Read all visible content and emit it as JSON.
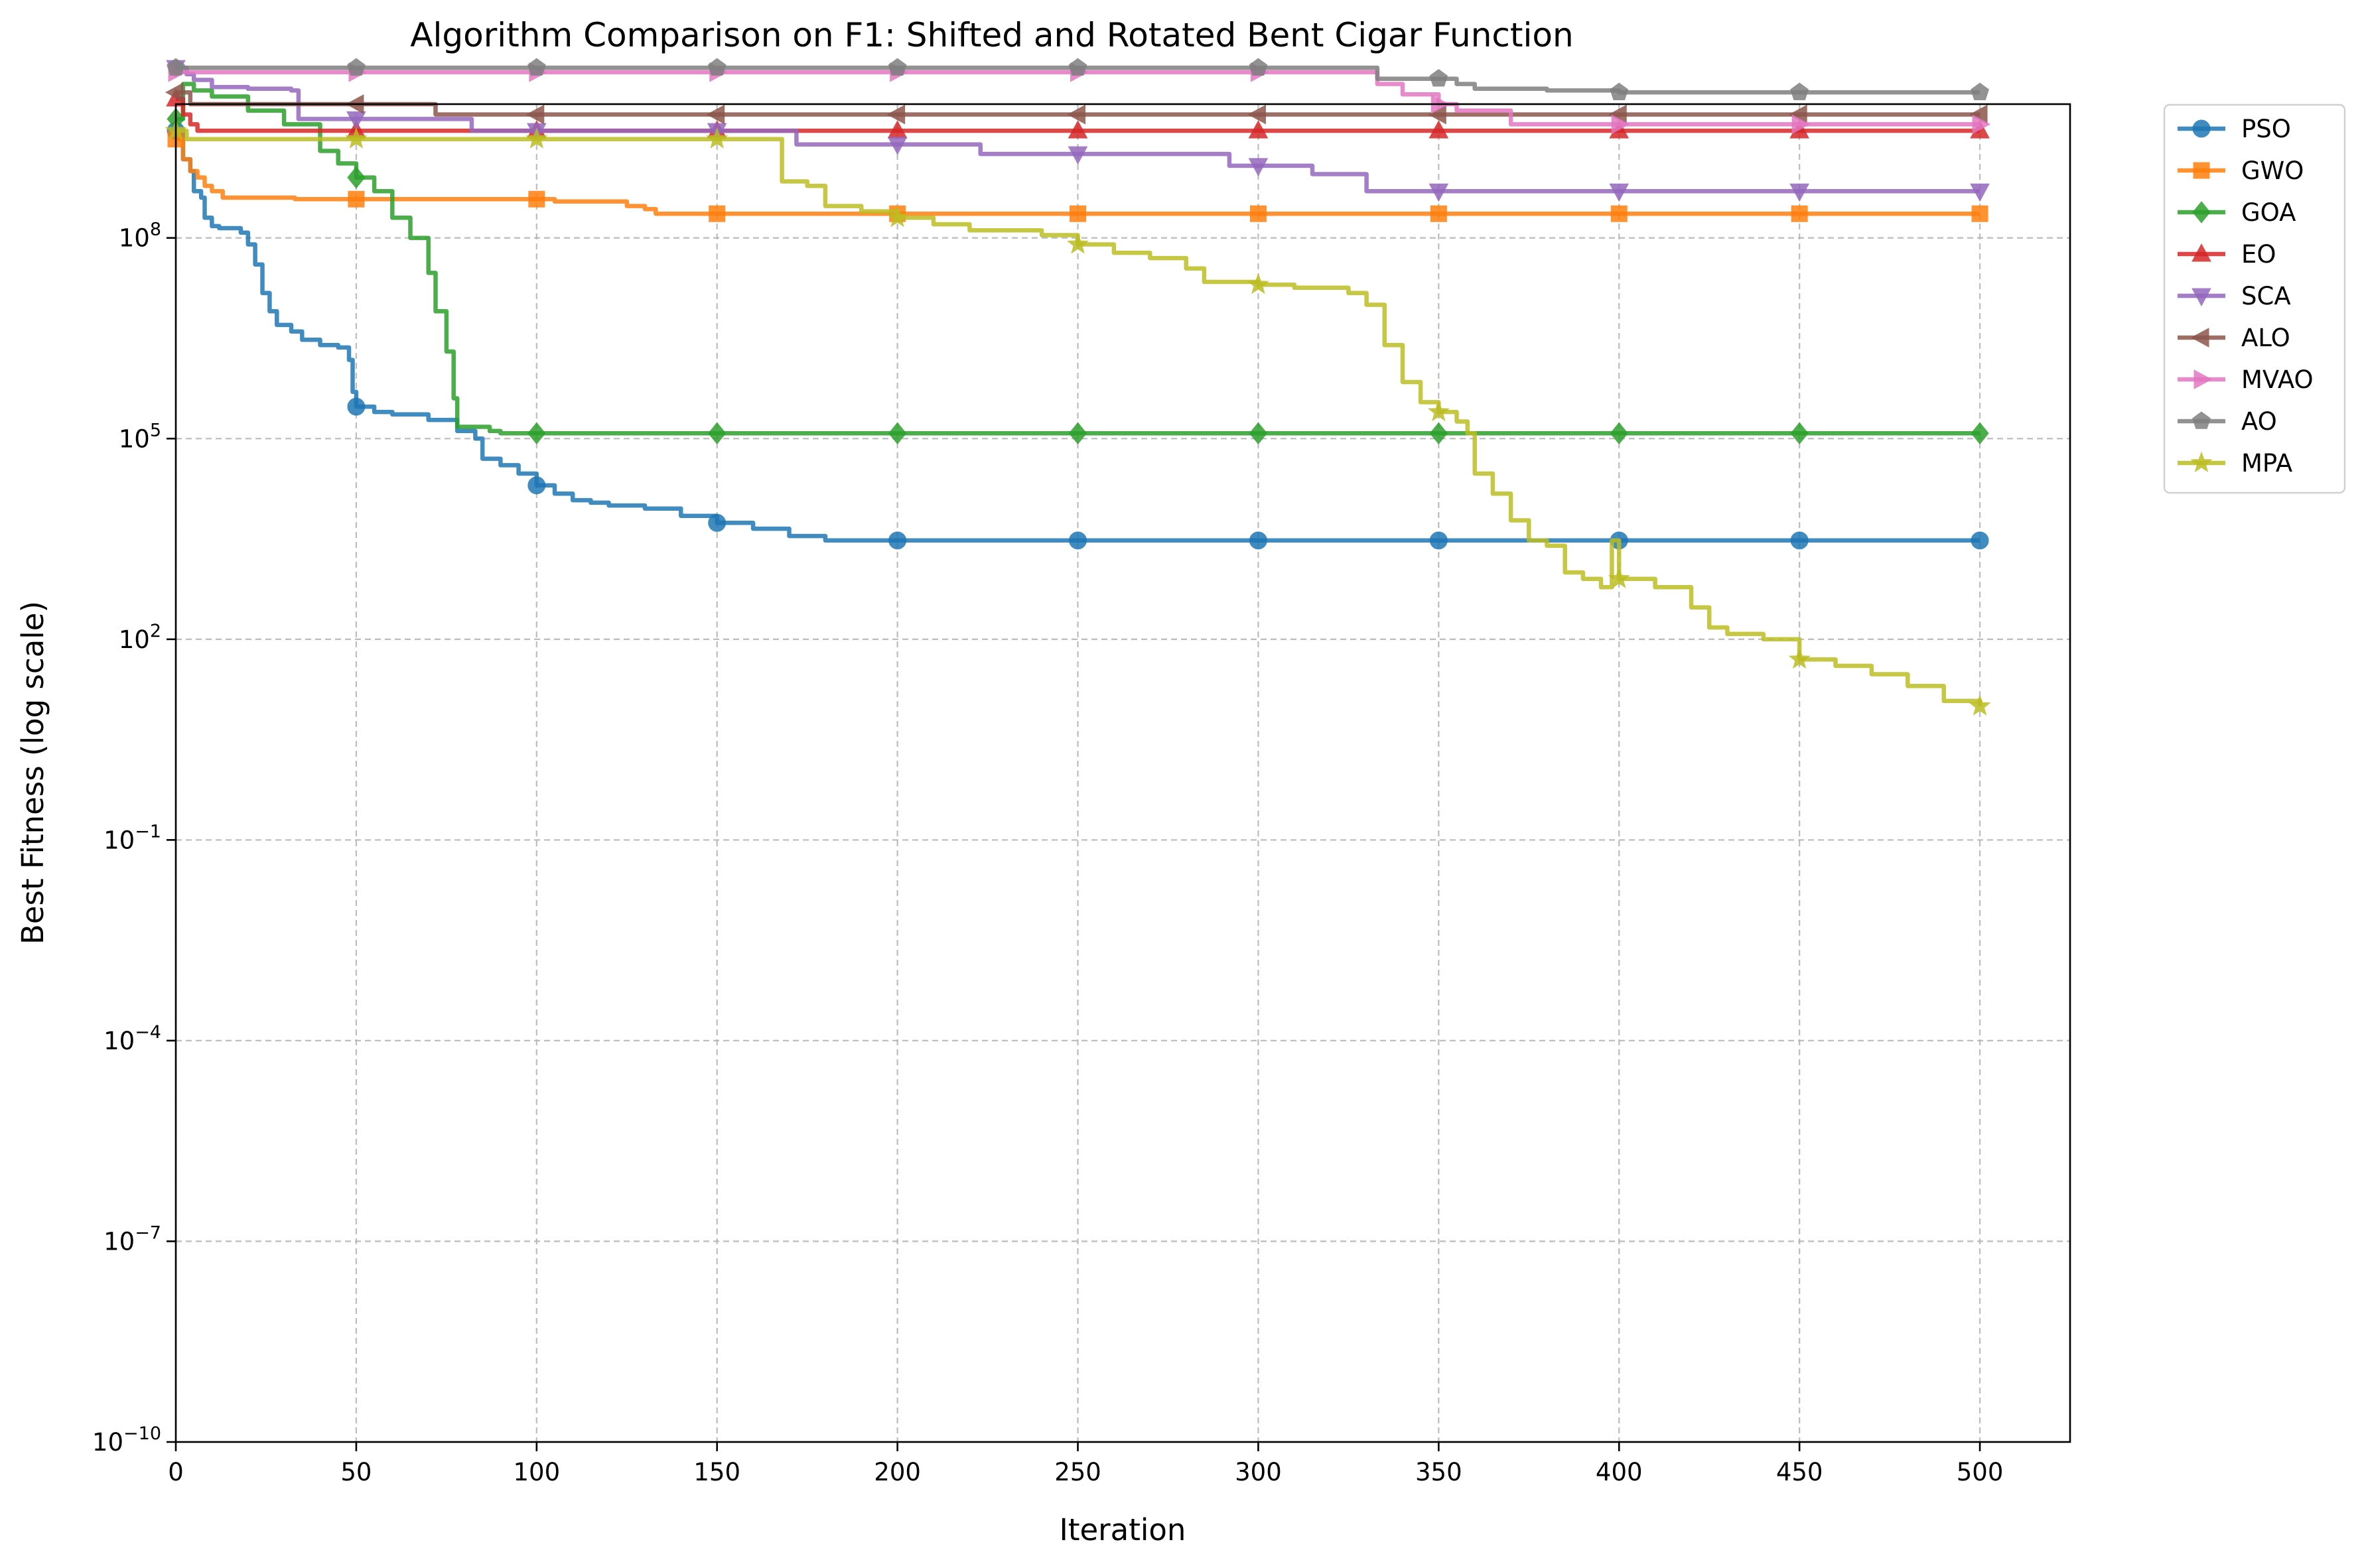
{
  "chart_data": {
    "type": "line",
    "title": "Algorithm Comparison on F1: Shifted and Rotated Bent Cigar Function",
    "xlabel": "Iteration",
    "ylabel": "Best Fitness (log scale)",
    "xlim": [
      0,
      525
    ],
    "ylim": [
      1e-10,
      10000000000.0
    ],
    "yscale": "log",
    "xticks": [
      0,
      50,
      100,
      150,
      200,
      250,
      300,
      350,
      400,
      450,
      500
    ],
    "xtick_labels": [
      "0",
      "50",
      "100",
      "150",
      "200",
      "250",
      "300",
      "350",
      "400",
      "450",
      "500"
    ],
    "yticks": [
      -10,
      -7,
      -4,
      -1,
      2,
      5,
      8
    ],
    "ytick_labels": [
      {
        "base": "10",
        "exp": "−10"
      },
      {
        "base": "10",
        "exp": "−7"
      },
      {
        "base": "10",
        "exp": "−4"
      },
      {
        "base": "10",
        "exp": "−1"
      },
      {
        "base": "10",
        "exp": "2"
      },
      {
        "base": "10",
        "exp": "5"
      },
      {
        "base": "10",
        "exp": "8"
      }
    ],
    "grid": true,
    "legend_position": "outside top-right",
    "series": [
      {
        "name": "PSO",
        "color": "#1f77b4",
        "marker": "circle",
        "points": [
          [
            0,
            4000000000.0
          ],
          [
            2,
            1500000000.0
          ],
          [
            4,
            1000000000.0
          ],
          [
            5,
            500000000.0
          ],
          [
            7,
            400000000.0
          ],
          [
            8,
            200000000.0
          ],
          [
            10,
            150000000.0
          ],
          [
            12,
            140000000.0
          ],
          [
            18,
            120000000.0
          ],
          [
            20,
            80000000.0
          ],
          [
            22,
            40000000.0
          ],
          [
            24,
            15000000.0
          ],
          [
            26,
            8000000.0
          ],
          [
            28,
            5000000.0
          ],
          [
            32,
            4000000.0
          ],
          [
            35,
            3000000.0
          ],
          [
            40,
            2500000.0
          ],
          [
            45,
            2300000.0
          ],
          [
            48,
            1500000.0
          ],
          [
            49,
            500000.0
          ],
          [
            50,
            300000.0
          ],
          [
            55,
            250000.0
          ],
          [
            60,
            230000.0
          ],
          [
            70,
            190000.0
          ],
          [
            78,
            130000.0
          ],
          [
            83,
            100000.0
          ],
          [
            85,
            50000.0
          ],
          [
            90,
            40000.0
          ],
          [
            95,
            30000.0
          ],
          [
            100,
            20000.0
          ],
          [
            105,
            15000.0
          ],
          [
            110,
            12000.0
          ],
          [
            115,
            11000.0
          ],
          [
            120,
            10000.0
          ],
          [
            130,
            9000.0
          ],
          [
            140,
            7000.0
          ],
          [
            150,
            5500.0
          ],
          [
            160,
            4500.0
          ],
          [
            170,
            3500.0
          ],
          [
            180,
            3000.0
          ],
          [
            200,
            3000.0
          ],
          [
            500,
            3000.0
          ]
        ]
      },
      {
        "name": "GWO",
        "color": "#ff7f0e",
        "marker": "square",
        "points": [
          [
            0,
            3000000000.0
          ],
          [
            2,
            1500000000.0
          ],
          [
            4,
            1000000000.0
          ],
          [
            6,
            800000000.0
          ],
          [
            8,
            600000000.0
          ],
          [
            10,
            500000000.0
          ],
          [
            12,
            500000000.0
          ],
          [
            13,
            400000000.0
          ],
          [
            32,
            400000000.0
          ],
          [
            33,
            380000000.0
          ],
          [
            100,
            380000000.0
          ],
          [
            105,
            350000000.0
          ],
          [
            120,
            350000000.0
          ],
          [
            125,
            300000000.0
          ],
          [
            130,
            270000000.0
          ],
          [
            133,
            230000000.0
          ],
          [
            500,
            230000000.0
          ]
        ]
      },
      {
        "name": "GOA",
        "color": "#2ca02c",
        "marker": "diamond",
        "points": [
          [
            0,
            6000000000.0
          ],
          [
            2,
            20000000000.0
          ],
          [
            5,
            16000000000.0
          ],
          [
            10,
            13000000000.0
          ],
          [
            20,
            8000000000.0
          ],
          [
            30,
            5000000000.0
          ],
          [
            40,
            2000000000.0
          ],
          [
            45,
            1300000000.0
          ],
          [
            50,
            800000000.0
          ],
          [
            55,
            500000000.0
          ],
          [
            60,
            200000000.0
          ],
          [
            65,
            100000000.0
          ],
          [
            70,
            30000000.0
          ],
          [
            72,
            8000000.0
          ],
          [
            75,
            2000000.0
          ],
          [
            77,
            400000.0
          ],
          [
            78,
            150000.0
          ],
          [
            85,
            150000.0
          ],
          [
            87,
            130000.0
          ],
          [
            90,
            120000.0
          ],
          [
            500,
            120000.0
          ]
        ]
      },
      {
        "name": "EO",
        "color": "#d62728",
        "marker": "triangle-up",
        "points": [
          [
            0,
            12000000000.0
          ],
          [
            2,
            7000000000.0
          ],
          [
            4,
            5000000000.0
          ],
          [
            6,
            4000000000.0
          ],
          [
            500,
            4000000000.0
          ]
        ]
      },
      {
        "name": "SCA",
        "color": "#9467bd",
        "marker": "triangle-down",
        "points": [
          [
            0,
            35000000000.0
          ],
          [
            3,
            28000000000.0
          ],
          [
            5,
            23000000000.0
          ],
          [
            10,
            18000000000.0
          ],
          [
            20,
            17000000000.0
          ],
          [
            32,
            16000000000.0
          ],
          [
            34,
            6000000000.0
          ],
          [
            80,
            6000000000.0
          ],
          [
            82,
            4000000000.0
          ],
          [
            170,
            4000000000.0
          ],
          [
            172,
            2500000000.0
          ],
          [
            220,
            2500000000.0
          ],
          [
            223,
            1800000000.0
          ],
          [
            290,
            1800000000.0
          ],
          [
            292,
            1200000000.0
          ],
          [
            310,
            1200000000.0
          ],
          [
            315,
            900000000.0
          ],
          [
            328,
            900000000.0
          ],
          [
            330,
            500000000.0
          ],
          [
            500,
            500000000.0
          ]
        ]
      },
      {
        "name": "ALO",
        "color": "#8c564b",
        "marker": "triangle-left",
        "points": [
          [
            0,
            15000000000.0
          ],
          [
            4,
            10000000000.0
          ],
          [
            70,
            10000000000.0
          ],
          [
            72,
            7000000000.0
          ],
          [
            500,
            7000000000.0
          ]
        ]
      },
      {
        "name": "MVAO",
        "color": "#e377c2",
        "marker": "triangle-right",
        "points": [
          [
            0,
            30000000000.0
          ],
          [
            330,
            30000000000.0
          ],
          [
            333,
            20000000000.0
          ],
          [
            340,
            14000000000.0
          ],
          [
            350,
            10000000000.0
          ],
          [
            355,
            8000000000.0
          ],
          [
            370,
            5000000000.0
          ],
          [
            500,
            5000000000.0
          ]
        ]
      },
      {
        "name": "AO",
        "color": "#7f7f7f",
        "marker": "pentagon",
        "points": [
          [
            0,
            35000000000.0
          ],
          [
            330,
            35000000000.0
          ],
          [
            333,
            24000000000.0
          ],
          [
            355,
            20000000000.0
          ],
          [
            360,
            17000000000.0
          ],
          [
            380,
            16000000000.0
          ],
          [
            400,
            15000000000.0
          ],
          [
            500,
            15000000000.0
          ]
        ]
      },
      {
        "name": "MPA",
        "color": "#bcbd22",
        "marker": "star",
        "points": [
          [
            0,
            4000000000.0
          ],
          [
            3,
            3000000000.0
          ],
          [
            165,
            3000000000.0
          ],
          [
            168,
            700000000.0
          ],
          [
            175,
            600000000.0
          ],
          [
            180,
            300000000.0
          ],
          [
            190,
            250000000.0
          ],
          [
            200,
            200000000.0
          ],
          [
            210,
            160000000.0
          ],
          [
            220,
            130000000.0
          ],
          [
            240,
            110000000.0
          ],
          [
            250,
            80000000.0
          ],
          [
            260,
            60000000.0
          ],
          [
            270,
            50000000.0
          ],
          [
            280,
            35000000.0
          ],
          [
            285,
            22000000.0
          ],
          [
            300,
            20000000.0
          ],
          [
            310,
            18000000.0
          ],
          [
            325,
            15000000.0
          ],
          [
            330,
            10000000.0
          ],
          [
            335,
            2500000.0
          ],
          [
            340,
            700000.0
          ],
          [
            345,
            350000.0
          ],
          [
            350,
            250000.0
          ],
          [
            355,
            180000.0
          ],
          [
            358,
            120000.0
          ],
          [
            360,
            30000.0
          ],
          [
            365,
            15000.0
          ],
          [
            370,
            6000.0
          ],
          [
            375,
            3000.0
          ],
          [
            380,
            2500.0
          ],
          [
            385,
            1000.0
          ],
          [
            390,
            800.0
          ],
          [
            395,
            600.0
          ],
          [
            398,
            3000.0
          ],
          [
            400,
            800.0
          ],
          [
            410,
            600.0
          ],
          [
            420,
            300.0
          ],
          [
            425,
            150.0
          ],
          [
            430,
            120.0
          ],
          [
            440,
            100.0
          ],
          [
            450,
            50.0
          ],
          [
            460,
            40.0
          ],
          [
            470,
            30.0
          ],
          [
            480,
            20.0
          ],
          [
            490,
            12.0
          ],
          [
            500,
            10.0
          ]
        ]
      }
    ]
  }
}
